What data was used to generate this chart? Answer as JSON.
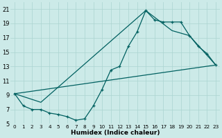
{
  "xlabel": "Humidex (Indice chaleur)",
  "xlim": [
    -0.5,
    23.5
  ],
  "ylim": [
    5,
    22
  ],
  "yticks": [
    5,
    7,
    9,
    11,
    13,
    15,
    17,
    19,
    21
  ],
  "xticks": [
    0,
    1,
    2,
    3,
    4,
    5,
    6,
    7,
    8,
    9,
    10,
    11,
    12,
    13,
    14,
    15,
    16,
    17,
    18,
    19,
    20,
    21,
    22,
    23
  ],
  "bg_color": "#cceae8",
  "grid_color": "#aad4d0",
  "line_color": "#006060",
  "line1_x": [
    0,
    1,
    2,
    3,
    4,
    5,
    6,
    7,
    8,
    9,
    10,
    11,
    12,
    13,
    14,
    15,
    16,
    17,
    18,
    19,
    20,
    21,
    22,
    23
  ],
  "line1_y": [
    9.2,
    7.5,
    7.0,
    7.0,
    6.5,
    6.3,
    6.0,
    5.5,
    5.7,
    7.5,
    9.8,
    12.5,
    13.0,
    15.8,
    17.8,
    20.8,
    19.5,
    19.2,
    19.2,
    19.2,
    17.3,
    15.8,
    14.8,
    13.2
  ],
  "line2_x": [
    0,
    3,
    15,
    18,
    20,
    23
  ],
  "line2_y": [
    9.2,
    8.0,
    20.8,
    18.0,
    17.3,
    13.2
  ],
  "line3_x": [
    0,
    23
  ],
  "line3_y": [
    9.2,
    13.2
  ]
}
